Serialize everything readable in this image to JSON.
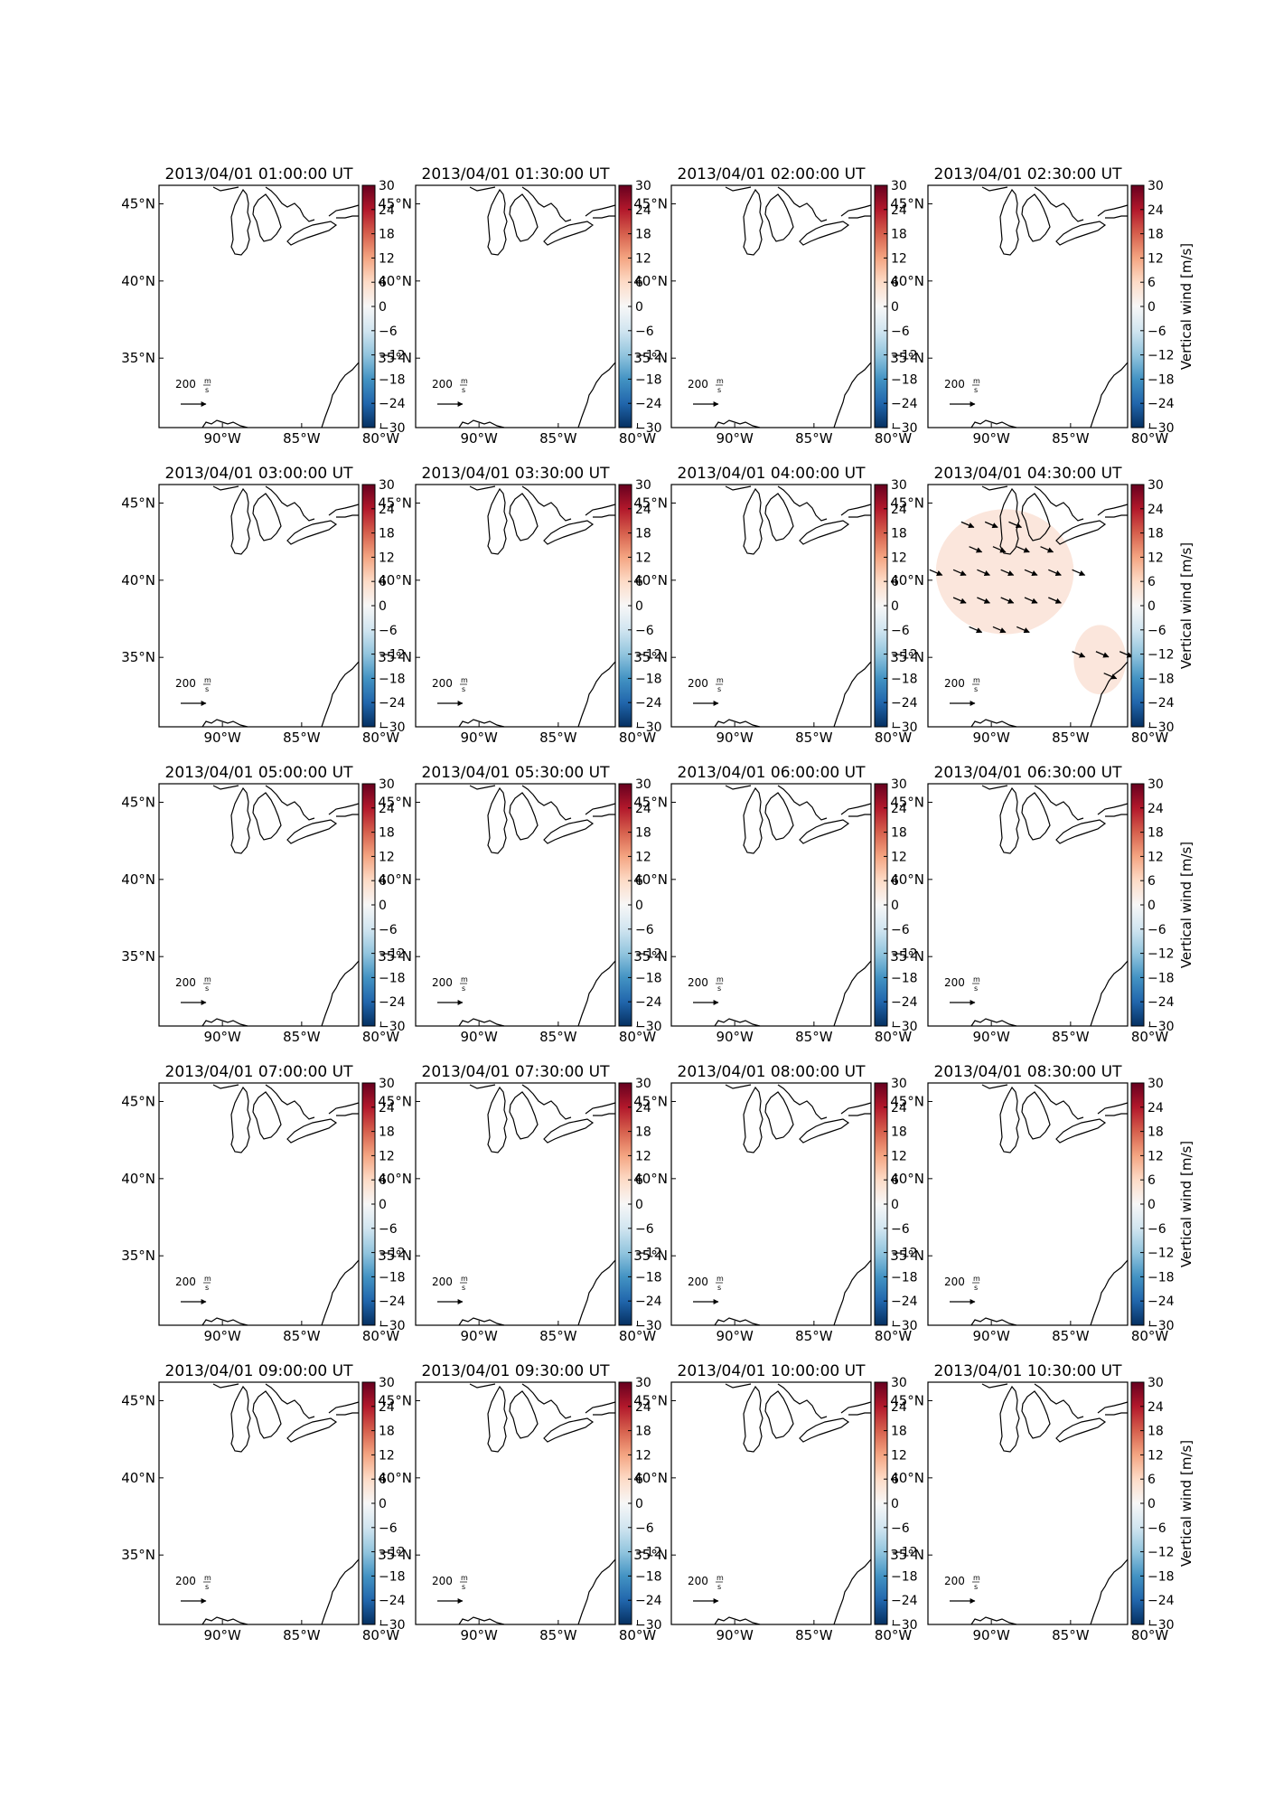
{
  "figure": {
    "panel_titles": [
      "2013/04/01 01:00:00 UT",
      "2013/04/01 01:30:00 UT",
      "2013/04/01 02:00:00 UT",
      "2013/04/01 02:30:00 UT",
      "2013/04/01 03:00:00 UT",
      "2013/04/01 03:30:00 UT",
      "2013/04/01 04:00:00 UT",
      "2013/04/01 04:30:00 UT",
      "2013/04/01 05:00:00 UT",
      "2013/04/01 05:30:00 UT",
      "2013/04/01 06:00:00 UT",
      "2013/04/01 06:30:00 UT",
      "2013/04/01 07:00:00 UT",
      "2013/04/01 07:30:00 UT",
      "2013/04/01 08:00:00 UT",
      "2013/04/01 08:30:00 UT",
      "2013/04/01 09:00:00 UT",
      "2013/04/01 09:30:00 UT",
      "2013/04/01 10:00:00 UT",
      "2013/04/01 10:30:00 UT"
    ],
    "lat_ticks": [
      "45°N",
      "40°N",
      "35°N"
    ],
    "lon_ticks": [
      "90°W",
      "85°W",
      "80°W"
    ],
    "colorbar": {
      "label": "Vertical wind [m/s]",
      "ticks": [
        "30",
        "24",
        "18",
        "12",
        "6",
        "0",
        "−6",
        "−12",
        "−18",
        "−24",
        "−30"
      ],
      "min": -30,
      "max": 30,
      "cmap": "RdBu_r"
    },
    "quiver_key": {
      "value": "200",
      "unit_num": "m",
      "unit_den": "s"
    }
  },
  "chart_data": {
    "type": "map",
    "rows": 5,
    "cols": 4,
    "lat_range": [
      30.5,
      46.2
    ],
    "lon_range": [
      -94,
      -81.4
    ],
    "active_panel_index": 7,
    "active_panel_fill_color": "#fbe6dc",
    "active_panel_field": {
      "regions": [
        {
          "name": "north",
          "lon_range": [
            -93.5,
            -84.8
          ],
          "lat_range": [
            36.5,
            44.6
          ]
        },
        {
          "name": "southeast",
          "lon_range": [
            -84.8,
            -81.5
          ],
          "lat_range": [
            32.6,
            37.1
          ]
        }
      ],
      "vector_rows": [
        {
          "lat": 43.6,
          "lons": [
            -91.5,
            -90.0,
            -88.5
          ]
        },
        {
          "lat": 42.0,
          "lons": [
            -91.0,
            -89.5,
            -88.0,
            -86.5
          ]
        },
        {
          "lat": 40.5,
          "lons": [
            -93.5,
            -92.0,
            -90.5,
            -89.0,
            -87.5,
            -86.0,
            -84.5
          ]
        },
        {
          "lat": 38.7,
          "lons": [
            -92.0,
            -90.5,
            -89.0,
            -87.5,
            -86.0
          ]
        },
        {
          "lat": 36.8,
          "lons": [
            -91.0,
            -89.5,
            -88.0
          ]
        },
        {
          "lat": 35.2,
          "lons": [
            -84.5,
            -83.0,
            -81.5
          ]
        },
        {
          "lat": 33.8,
          "lons": [
            -82.5
          ]
        }
      ]
    }
  }
}
